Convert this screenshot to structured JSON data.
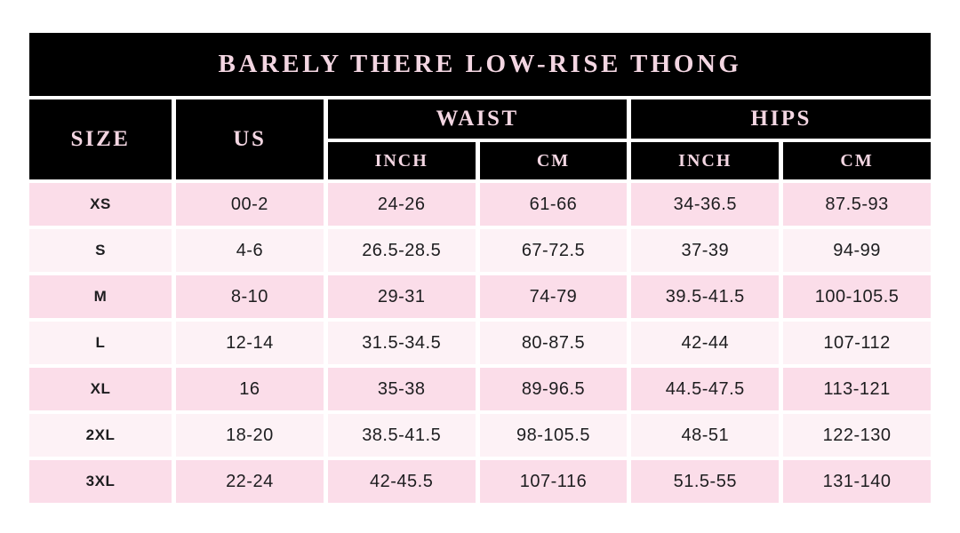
{
  "chart_data": {
    "type": "table",
    "title": "BARELY THERE LOW-RISE THONG",
    "headers": {
      "size": "SIZE",
      "us": "US",
      "waist": "WAIST",
      "hips": "HIPS",
      "inch": "INCH",
      "cm": "CM"
    },
    "columns": [
      "SIZE",
      "US",
      "WAIST INCH",
      "WAIST CM",
      "HIPS INCH",
      "HIPS CM"
    ],
    "rows": [
      {
        "size": "XS",
        "us": "00-2",
        "waist_inch": "24-26",
        "waist_cm": "61-66",
        "hips_inch": "34-36.5",
        "hips_cm": "87.5-93"
      },
      {
        "size": "S",
        "us": "4-6",
        "waist_inch": "26.5-28.5",
        "waist_cm": "67-72.5",
        "hips_inch": "37-39",
        "hips_cm": "94-99"
      },
      {
        "size": "M",
        "us": "8-10",
        "waist_inch": "29-31",
        "waist_cm": "74-79",
        "hips_inch": "39.5-41.5",
        "hips_cm": "100-105.5"
      },
      {
        "size": "L",
        "us": "12-14",
        "waist_inch": "31.5-34.5",
        "waist_cm": "80-87.5",
        "hips_inch": "42-44",
        "hips_cm": "107-112"
      },
      {
        "size": "XL",
        "us": "16",
        "waist_inch": "35-38",
        "waist_cm": "89-96.5",
        "hips_inch": "44.5-47.5",
        "hips_cm": "113-121"
      },
      {
        "size": "2XL",
        "us": "18-20",
        "waist_inch": "38.5-41.5",
        "waist_cm": "98-105.5",
        "hips_inch": "48-51",
        "hips_cm": "122-130"
      },
      {
        "size": "3XL",
        "us": "22-24",
        "waist_inch": "42-45.5",
        "waist_cm": "107-116",
        "hips_inch": "51.5-55",
        "hips_cm": "131-140"
      }
    ],
    "layout": {
      "row_stripe_colors": [
        "#fbdde9",
        "#fdf2f6"
      ],
      "header_bg": "#000000",
      "header_text": "#f3d6e2",
      "data_text": "#1d1d1f",
      "page_bg": "#ffffff"
    }
  }
}
